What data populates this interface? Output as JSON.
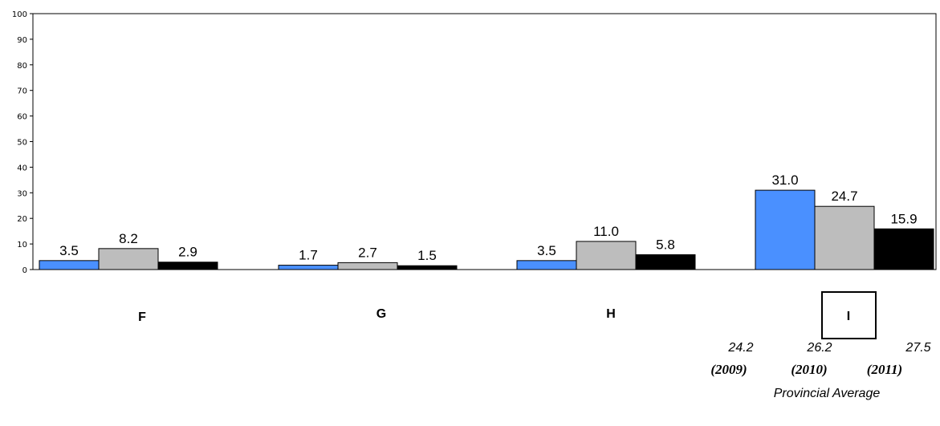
{
  "chart_data": {
    "type": "bar",
    "categories": [
      "F",
      "G",
      "H",
      "I"
    ],
    "series": [
      {
        "values": [
          3.5,
          1.7,
          3.5,
          31.0
        ],
        "labels": [
          "3.5",
          "1.7",
          "3.5",
          "31.0"
        ],
        "color": "#4a90ff"
      },
      {
        "values": [
          8.2,
          2.7,
          11.0,
          24.7
        ],
        "labels": [
          "8.2",
          "2.7",
          "11.0",
          "24.7"
        ],
        "color": "#bdbdbd"
      },
      {
        "values": [
          2.9,
          1.5,
          5.8,
          15.9
        ],
        "labels": [
          "2.9",
          "1.5",
          "5.8",
          "15.9"
        ],
        "color": "#000000"
      }
    ],
    "ylim": [
      0,
      100
    ],
    "yticks": [
      "0",
      "10",
      "20",
      "30",
      "40",
      "50",
      "60",
      "70",
      "80",
      "90",
      "100"
    ],
    "highlighted_category": "I",
    "grid": false,
    "provincial_average": {
      "title": "Provincial Average",
      "values": [
        "24.2",
        "26.2",
        "27.5"
      ],
      "years": [
        "(2009)",
        "(2010)",
        "(2011)"
      ]
    }
  }
}
